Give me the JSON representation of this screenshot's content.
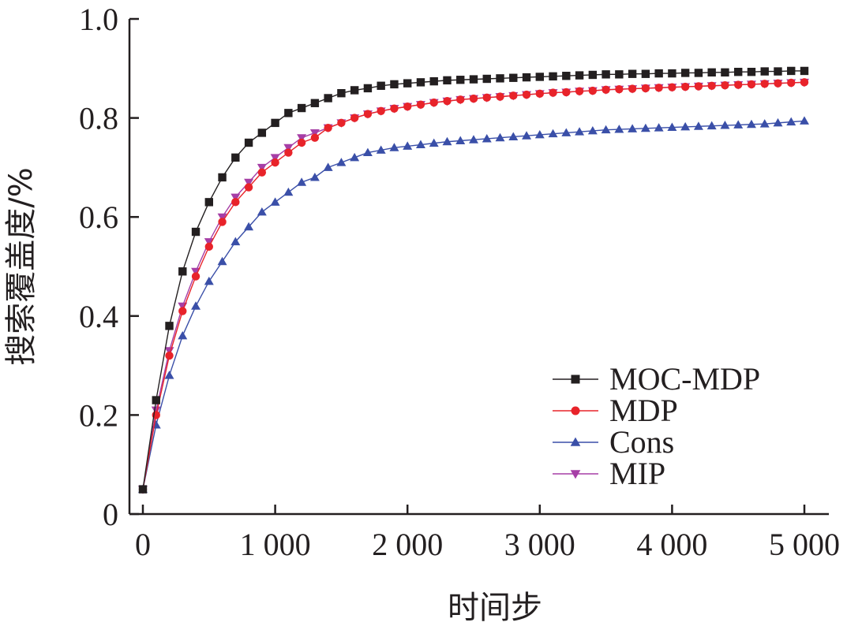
{
  "chart_data": {
    "type": "line",
    "title": "",
    "xlabel": "时间步",
    "ylabel": "搜索覆盖度/%",
    "xlim": [
      0,
      5000
    ],
    "ylim": [
      0,
      1.0
    ],
    "grid": false,
    "legend_position": "bottom-right",
    "x_ticks": [
      0,
      1000,
      2000,
      3000,
      4000,
      5000
    ],
    "x_tick_labels": [
      "0",
      "1 000",
      "2 000",
      "3 000",
      "4 000",
      "5 000"
    ],
    "y_ticks": [
      0,
      0.2,
      0.4,
      0.6,
      0.8,
      1.0
    ],
    "y_tick_labels": [
      "0",
      "0.2",
      "0.4",
      "0.6",
      "0.8",
      "1.0"
    ],
    "x": [
      0,
      100,
      200,
      300,
      400,
      500,
      600,
      700,
      800,
      900,
      1000,
      1100,
      1200,
      1300,
      1400,
      1500,
      1600,
      1700,
      1800,
      1900,
      2000,
      2100,
      2200,
      2300,
      2400,
      2500,
      2600,
      2700,
      2800,
      2900,
      3000,
      3100,
      3200,
      3300,
      3400,
      3500,
      3600,
      3700,
      3800,
      3900,
      4000,
      4100,
      4200,
      4300,
      4400,
      4500,
      4600,
      4700,
      4800,
      4900,
      5000
    ],
    "series": [
      {
        "name": "MOC-MDP",
        "color": "#231f20",
        "marker": "square",
        "values": [
          0.05,
          0.23,
          0.38,
          0.49,
          0.57,
          0.63,
          0.68,
          0.72,
          0.75,
          0.77,
          0.79,
          0.81,
          0.82,
          0.83,
          0.84,
          0.85,
          0.856,
          0.86,
          0.865,
          0.868,
          0.87,
          0.872,
          0.874,
          0.876,
          0.877,
          0.878,
          0.879,
          0.88,
          0.881,
          0.882,
          0.883,
          0.884,
          0.885,
          0.886,
          0.887,
          0.888,
          0.888,
          0.889,
          0.889,
          0.89,
          0.89,
          0.891,
          0.891,
          0.892,
          0.892,
          0.893,
          0.893,
          0.894,
          0.894,
          0.895,
          0.895
        ]
      },
      {
        "name": "MDP",
        "color": "#e8232a",
        "marker": "circle",
        "values": [
          0.05,
          0.2,
          0.32,
          0.41,
          0.48,
          0.54,
          0.59,
          0.63,
          0.66,
          0.69,
          0.71,
          0.73,
          0.75,
          0.76,
          0.78,
          0.79,
          0.8,
          0.808,
          0.814,
          0.819,
          0.823,
          0.827,
          0.831,
          0.834,
          0.837,
          0.839,
          0.841,
          0.843,
          0.845,
          0.847,
          0.849,
          0.851,
          0.852,
          0.854,
          0.855,
          0.857,
          0.858,
          0.859,
          0.86,
          0.861,
          0.862,
          0.863,
          0.864,
          0.865,
          0.866,
          0.867,
          0.868,
          0.869,
          0.87,
          0.871,
          0.872
        ]
      },
      {
        "name": "Cons",
        "color": "#3a4fa8",
        "marker": "triangle-up",
        "values": [
          0.05,
          0.18,
          0.28,
          0.36,
          0.42,
          0.47,
          0.51,
          0.55,
          0.58,
          0.61,
          0.63,
          0.65,
          0.67,
          0.68,
          0.7,
          0.71,
          0.72,
          0.73,
          0.735,
          0.74,
          0.743,
          0.746,
          0.749,
          0.752,
          0.754,
          0.756,
          0.758,
          0.76,
          0.762,
          0.764,
          0.766,
          0.768,
          0.77,
          0.772,
          0.774,
          0.776,
          0.777,
          0.778,
          0.779,
          0.78,
          0.781,
          0.782,
          0.783,
          0.784,
          0.785,
          0.786,
          0.787,
          0.788,
          0.79,
          0.792,
          0.794
        ]
      },
      {
        "name": "MIP",
        "color": "#a63ea6",
        "marker": "triangle-down",
        "values": [
          0.05,
          0.21,
          0.33,
          0.42,
          0.49,
          0.55,
          0.6,
          0.64,
          0.67,
          0.7,
          0.72,
          0.74,
          0.76,
          0.77,
          0.78,
          0.79,
          0.8,
          0.808,
          0.814,
          0.819,
          0.823,
          0.827,
          0.831,
          0.834,
          0.837,
          0.839,
          0.841,
          0.843,
          0.845,
          0.847,
          0.849,
          0.851,
          0.852,
          0.854,
          0.855,
          0.857,
          0.858,
          0.859,
          0.86,
          0.861,
          0.862,
          0.863,
          0.864,
          0.865,
          0.866,
          0.867,
          0.868,
          0.869,
          0.87,
          0.871,
          0.872
        ]
      }
    ]
  }
}
